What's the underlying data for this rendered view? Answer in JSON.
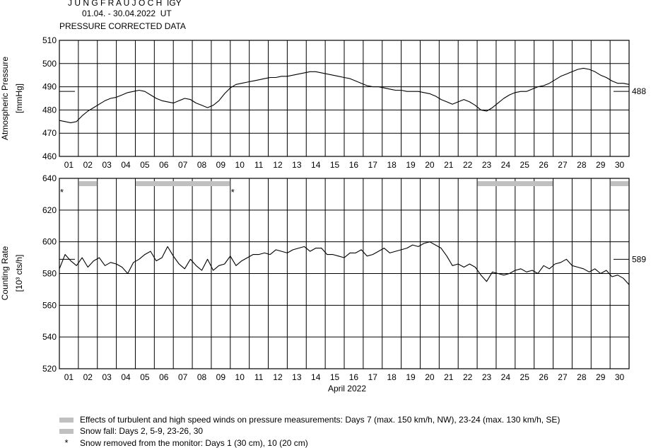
{
  "header": {
    "station": "J U N G F R A U J O C H  IGY",
    "period": "01.04. - 30.04.2022  UT",
    "subtitle": "PRESSURE CORRECTED DATA"
  },
  "chart_data": [
    {
      "type": "line",
      "ylabel": "Atmospheric Pressure",
      "ylabel_unit": "[mmHg]",
      "ylim": [
        460,
        510
      ],
      "yticks": [
        460,
        470,
        480,
        490,
        500,
        510
      ],
      "xlim": [
        1,
        31
      ],
      "x_tick_labels": [
        "01",
        "02",
        "03",
        "04",
        "05",
        "06",
        "07",
        "08",
        "09",
        "10",
        "11",
        "12",
        "13",
        "14",
        "15",
        "16",
        "17",
        "18",
        "19",
        "20",
        "21",
        "22",
        "23",
        "24",
        "25",
        "26",
        "27",
        "28",
        "29",
        "30"
      ],
      "grid": true,
      "mean_value": 488,
      "mean_label": "488",
      "color": "#000000",
      "x": [
        1.0,
        1.3,
        1.6,
        1.9,
        2.2,
        2.5,
        2.8,
        3.1,
        3.4,
        3.7,
        4.0,
        4.3,
        4.6,
        4.9,
        5.2,
        5.5,
        5.8,
        6.1,
        6.4,
        6.7,
        7.0,
        7.3,
        7.6,
        7.9,
        8.2,
        8.5,
        8.8,
        9.1,
        9.4,
        9.7,
        10.0,
        10.3,
        10.6,
        10.9,
        11.2,
        11.5,
        11.8,
        12.1,
        12.4,
        12.7,
        13.0,
        13.3,
        13.6,
        13.9,
        14.2,
        14.5,
        14.8,
        15.1,
        15.4,
        15.7,
        16.0,
        16.3,
        16.6,
        16.9,
        17.2,
        17.5,
        17.8,
        18.1,
        18.4,
        18.7,
        19.0,
        19.3,
        19.6,
        19.9,
        20.2,
        20.5,
        20.8,
        21.1,
        21.4,
        21.7,
        22.0,
        22.3,
        22.6,
        22.9,
        23.2,
        23.5,
        23.8,
        24.1,
        24.4,
        24.7,
        25.0,
        25.3,
        25.6,
        25.9,
        26.2,
        26.5,
        26.8,
        27.1,
        27.4,
        27.7,
        28.0,
        28.3,
        28.6,
        28.9,
        29.2,
        29.5,
        29.8,
        30.1,
        30.4,
        30.7,
        31.0
      ],
      "y": [
        475.5,
        475,
        474.5,
        475,
        477.5,
        479.5,
        481,
        482.5,
        484,
        485,
        485.5,
        486.5,
        487.5,
        488,
        488.5,
        488,
        486.5,
        485,
        484,
        483.5,
        483,
        484,
        485,
        484.5,
        483,
        482,
        481,
        482,
        484,
        487,
        489.5,
        491,
        491.5,
        492,
        492.5,
        493,
        493.5,
        494,
        494,
        494.5,
        494.5,
        495,
        495.5,
        496,
        496.5,
        496.5,
        496,
        495.5,
        495,
        494.5,
        494,
        493.5,
        492.5,
        491.5,
        490.5,
        490,
        490,
        489.5,
        489,
        488.5,
        488.5,
        488,
        488,
        488,
        487.5,
        487,
        486,
        484.5,
        483.5,
        482.5,
        483.5,
        484.5,
        483.5,
        482,
        480,
        479.5,
        481,
        483,
        485,
        486.5,
        487.5,
        488,
        488,
        489,
        490,
        490.5,
        491.5,
        493,
        494.5,
        495.5,
        496.5,
        497.5,
        498,
        497.5,
        496.5,
        495,
        494,
        492.5,
        491.5,
        491.5,
        491
      ]
    },
    {
      "type": "line",
      "ylabel": "Counting Rate",
      "ylabel_unit": "[10³ cts/h]",
      "ylim": [
        520,
        640
      ],
      "yticks": [
        520,
        540,
        560,
        580,
        600,
        620,
        640
      ],
      "xlim": [
        1,
        31
      ],
      "x_tick_labels": [
        "01",
        "02",
        "03",
        "04",
        "05",
        "06",
        "07",
        "08",
        "09",
        "10",
        "11",
        "12",
        "13",
        "14",
        "15",
        "16",
        "17",
        "18",
        "19",
        "20",
        "21",
        "22",
        "23",
        "24",
        "25",
        "26",
        "27",
        "28",
        "29",
        "30"
      ],
      "xlabel": "April 2022",
      "grid": true,
      "mean_value": 589,
      "mean_label": "589",
      "color": "#000000",
      "x": [
        1.0,
        1.3,
        1.6,
        1.9,
        2.2,
        2.5,
        2.8,
        3.1,
        3.4,
        3.7,
        4.0,
        4.3,
        4.6,
        4.9,
        5.2,
        5.5,
        5.8,
        6.1,
        6.4,
        6.7,
        7.0,
        7.3,
        7.6,
        7.9,
        8.2,
        8.5,
        8.8,
        9.1,
        9.4,
        9.7,
        10.0,
        10.3,
        10.6,
        10.9,
        11.2,
        11.5,
        11.8,
        12.1,
        12.4,
        12.7,
        13.0,
        13.3,
        13.6,
        13.9,
        14.2,
        14.5,
        14.8,
        15.1,
        15.4,
        15.7,
        16.0,
        16.3,
        16.6,
        16.9,
        17.2,
        17.5,
        17.8,
        18.1,
        18.4,
        18.7,
        19.0,
        19.3,
        19.6,
        19.9,
        20.2,
        20.5,
        20.8,
        21.1,
        21.4,
        21.7,
        22.0,
        22.3,
        22.6,
        22.9,
        23.2,
        23.5,
        23.8,
        24.1,
        24.4,
        24.7,
        25.0,
        25.3,
        25.6,
        25.9,
        26.2,
        26.5,
        26.8,
        27.1,
        27.4,
        27.7,
        28.0,
        28.3,
        28.6,
        28.9,
        29.2,
        29.5,
        29.8,
        30.1,
        30.4,
        30.7,
        31.0
      ],
      "y": [
        583,
        592,
        588,
        585,
        590,
        584,
        588,
        590,
        585,
        587,
        586,
        584,
        580,
        587,
        589,
        592,
        594,
        588,
        590,
        597,
        591,
        586,
        583,
        589,
        585,
        582,
        589,
        582,
        585,
        586,
        591,
        585,
        588,
        590,
        592,
        592,
        593,
        592,
        595,
        594,
        593,
        595,
        596,
        597,
        594,
        596,
        596,
        592,
        592,
        591,
        590,
        593,
        593,
        595,
        591,
        592,
        594,
        596,
        593,
        594,
        595,
        596,
        598,
        597,
        599,
        600,
        598,
        596,
        591,
        585,
        586,
        584,
        586,
        584,
        579,
        575,
        581,
        580,
        579,
        580,
        582,
        583,
        581,
        582,
        580,
        585,
        583,
        586,
        587,
        589,
        585,
        584,
        583,
        581,
        583,
        580,
        582,
        578,
        579,
        577,
        573
      ],
      "annotations": {
        "wind_days": [
          7,
          23,
          24
        ],
        "snow_spans": [
          [
            2,
            3
          ],
          [
            5,
            10
          ],
          [
            23,
            27
          ],
          [
            30,
            31
          ]
        ],
        "snow_removed_days": [
          1,
          10
        ],
        "snow_removed_marker": "*"
      }
    }
  ],
  "legend": {
    "wind": "Effects of turbulent and high speed winds on pressure measurements: Days 7 (max. 150 km/h, NW), 23-24 (max. 130 km/h, SE)",
    "snow": "Snow fall: Days 2, 5-9, 23-26, 30",
    "removed": "Snow removed from the monitor: Days 1 (30 cm), 10 (20 cm)",
    "removed_symbol": "*",
    "bar_color": "#c0c0c0"
  }
}
